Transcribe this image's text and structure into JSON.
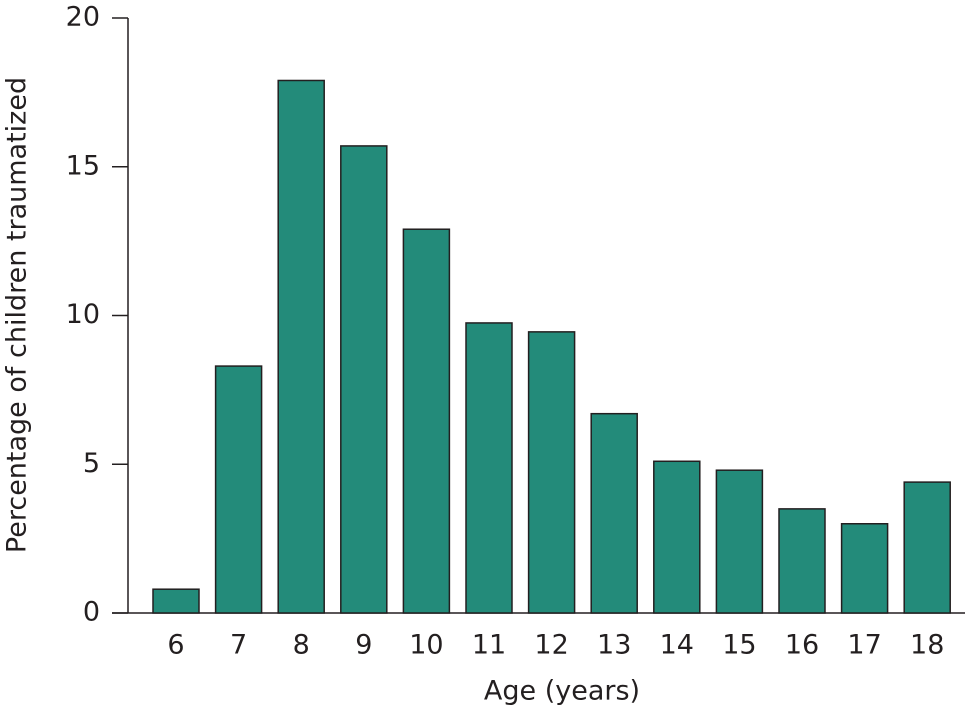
{
  "chart_data": {
    "type": "bar",
    "x_label": "Age (years)",
    "y_label": "Percentage of children traumatized",
    "categories": [
      "6",
      "7",
      "8",
      "9",
      "10",
      "11",
      "12",
      "13",
      "14",
      "15",
      "16",
      "17",
      "18"
    ],
    "values": [
      0.8,
      8.3,
      17.9,
      15.7,
      12.9,
      9.75,
      9.45,
      6.7,
      5.1,
      4.8,
      3.5,
      3.0,
      4.4
    ],
    "color": "#238b7a",
    "ylim": [
      0,
      20
    ],
    "yticks": [
      0,
      5,
      10,
      15,
      20
    ],
    "grid": false
  }
}
